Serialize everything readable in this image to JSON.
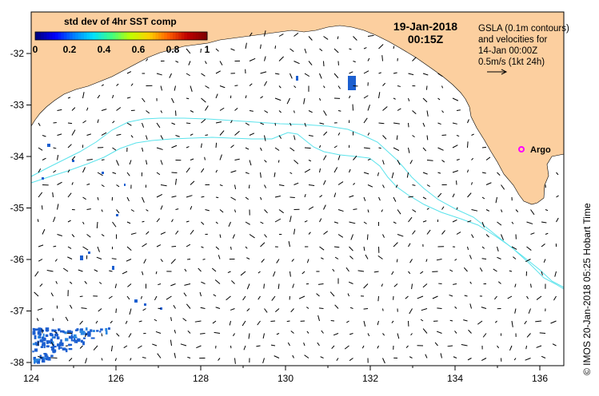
{
  "map": {
    "longitude_ticks": [
      "124",
      "126",
      "128",
      "130",
      "132",
      "134",
      "136"
    ],
    "latitude_ticks": [
      "-32",
      "-33",
      "-34",
      "-35",
      "-36",
      "-37",
      "-38"
    ],
    "colorbar": {
      "title": "std dev of 4hr SST comp",
      "ticks": [
        "0",
        "0.2",
        "0.4",
        "0.6",
        "0.8",
        "1"
      ],
      "colormap": [
        "#000080",
        "#0000ff",
        "#0080ff",
        "#00e0ff",
        "#40ff80",
        "#c0ff00",
        "#ffd000",
        "#ff6000",
        "#c00000",
        "#800000"
      ]
    },
    "date": "19-Jan-2018",
    "time": "00:15Z",
    "info_lines": [
      "GSLA (0.1m contours)",
      "and velocities for",
      "14-Jan 00:00Z",
      "0.5m/s (1kt 24h)"
    ],
    "argo_label": "Argo",
    "side_label": "© IMOS 20-Jan-2018 05:25 Hobart Time",
    "colors": {
      "land": "#fccf9f",
      "contour": "#5be3ec",
      "argo": "#ff00ff",
      "sst_patch": "#1c5fd0",
      "vector": "#000000"
    }
  }
}
